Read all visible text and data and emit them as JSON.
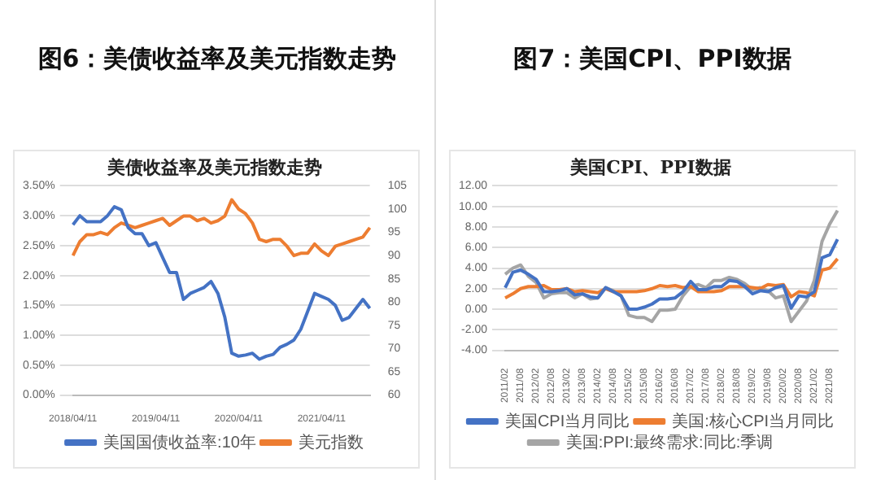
{
  "chart_data": [
    {
      "type": "line",
      "title": "图6：美债收益率及美元指数走势",
      "subtitle": "美债收益率及美元指数走势",
      "categories": [
        "2018/04/11",
        null,
        null,
        null,
        null,
        null,
        null,
        null,
        null,
        null,
        null,
        null,
        "2019/04/11",
        null,
        null,
        null,
        null,
        null,
        null,
        null,
        null,
        null,
        null,
        null,
        "2020/04/11",
        null,
        null,
        null,
        null,
        null,
        null,
        null,
        null,
        null,
        null,
        null,
        "2021/04/11",
        null,
        null,
        null,
        null,
        null,
        null,
        null
      ],
      "series": [
        {
          "name": "美国国债收益率:10年",
          "color": "#4472c4",
          "values": [
            2.85,
            3.0,
            2.9,
            2.9,
            2.9,
            3.0,
            3.15,
            3.1,
            2.8,
            2.7,
            2.7,
            2.5,
            2.55,
            2.3,
            2.05,
            2.05,
            1.6,
            1.7,
            1.75,
            1.8,
            1.9,
            1.7,
            1.3,
            0.7,
            0.65,
            0.67,
            0.7,
            0.6,
            0.65,
            0.68,
            0.8,
            0.85,
            0.92,
            1.1,
            1.4,
            1.7,
            1.65,
            1.6,
            1.5,
            1.25,
            1.3,
            1.45,
            1.6,
            1.45
          ]
        },
        {
          "name": "美元指数",
          "color": "#ed7d31",
          "axis": "y2",
          "values": [
            90,
            93,
            94.5,
            94.5,
            95,
            94.5,
            96,
            97,
            96.5,
            96,
            96.5,
            97,
            97.5,
            98,
            96.5,
            97.5,
            98.5,
            98.5,
            97.5,
            98,
            97,
            97.5,
            98.5,
            102,
            100,
            99,
            97,
            93.5,
            93,
            93.5,
            93.5,
            92,
            90,
            90.5,
            90.5,
            92.5,
            91,
            90,
            92,
            92.5,
            93,
            93.5,
            94,
            96
          ]
        }
      ],
      "ylim": [
        0,
        3.5
      ],
      "yticks": [
        {
          "value": 0,
          "label": "0.00%"
        },
        {
          "value": 0.5,
          "label": "0.50%"
        },
        {
          "value": 1,
          "label": "1.00%"
        },
        {
          "value": 1.5,
          "label": "1.50%"
        },
        {
          "value": 2,
          "label": "2.00%"
        },
        {
          "value": 2.5,
          "label": "2.50%"
        },
        {
          "value": 3,
          "label": "3.00%"
        },
        {
          "value": 3.5,
          "label": "3.50%"
        }
      ],
      "y2lim": [
        60,
        105
      ],
      "y2ticks": [
        60,
        65,
        70,
        75,
        80,
        85,
        90,
        95,
        100,
        105
      ],
      "grid": "y",
      "legend": "bottom",
      "marker": "none"
    },
    {
      "type": "line",
      "title": "图7：美国CPI、PPI数据",
      "subtitle": "美国CPI、PPI数据",
      "categories": [
        "2011/02",
        null,
        "2011/08",
        null,
        "2012/02",
        null,
        "2012/08",
        null,
        "2013/02",
        null,
        "2013/08",
        null,
        "2014/02",
        null,
        "2014/08",
        null,
        "2015/02",
        null,
        "2015/08",
        null,
        "2016/02",
        null,
        "2016/08",
        null,
        "2017/02",
        null,
        "2017/08",
        null,
        "2018/02",
        null,
        "2018/08",
        null,
        "2019/02",
        null,
        "2019/08",
        null,
        "2020/02",
        null,
        "2020/08",
        null,
        "2021/02",
        null,
        "2021/08",
        null
      ],
      "series": [
        {
          "name": "美国CPI当月同比",
          "color": "#4472c4",
          "values": [
            2.1,
            3.6,
            3.8,
            3.4,
            2.9,
            1.7,
            1.7,
            1.8,
            2.0,
            1.4,
            1.5,
            1.2,
            1.1,
            2.1,
            1.7,
            1.3,
            0.0,
            0.0,
            0.2,
            0.5,
            1.0,
            1.0,
            1.1,
            1.7,
            2.7,
            1.9,
            1.9,
            2.2,
            2.2,
            2.8,
            2.7,
            2.2,
            1.5,
            1.8,
            1.7,
            2.1,
            2.3,
            0.1,
            1.3,
            1.2,
            1.7,
            5.0,
            5.3,
            6.8
          ]
        },
        {
          "name": "美国:核心CPI当月同比",
          "color": "#ed7d31",
          "values": [
            1.1,
            1.5,
            2.0,
            2.2,
            2.2,
            2.3,
            1.9,
            1.9,
            2.0,
            1.7,
            1.8,
            1.7,
            1.6,
            2.0,
            1.7,
            1.7,
            1.7,
            1.7,
            1.8,
            2.0,
            2.3,
            2.2,
            2.3,
            2.1,
            2.2,
            1.7,
            1.7,
            1.7,
            1.8,
            2.2,
            2.2,
            2.2,
            2.1,
            2.0,
            2.4,
            2.3,
            2.4,
            1.2,
            1.7,
            1.6,
            1.3,
            3.8,
            4.0,
            4.9
          ]
        },
        {
          "name": "美国:PPI:最终需求:同比:季调",
          "color": "#a5a5a5",
          "values": [
            3.4,
            4.0,
            4.3,
            3.2,
            2.6,
            1.1,
            1.5,
            1.6,
            1.6,
            1.1,
            1.5,
            1.0,
            1.1,
            2.1,
            1.8,
            1.3,
            -0.6,
            -0.8,
            -0.8,
            -1.2,
            -0.1,
            -0.1,
            0.0,
            1.3,
            2.2,
            2.4,
            2.1,
            2.8,
            2.8,
            3.1,
            2.9,
            2.5,
            1.9,
            2.1,
            1.8,
            1.1,
            1.3,
            -1.2,
            -0.2,
            0.8,
            2.8,
            6.6,
            8.3,
            9.6
          ]
        }
      ],
      "ylim": [
        -4,
        12
      ],
      "yticks": [
        {
          "value": -4,
          "label": "-4.00"
        },
        {
          "value": -2,
          "label": "-2.00"
        },
        {
          "value": 0,
          "label": "0.00"
        },
        {
          "value": 2,
          "label": "2.00"
        },
        {
          "value": 4,
          "label": "4.00"
        },
        {
          "value": 6,
          "label": "6.00"
        },
        {
          "value": 8,
          "label": "8.00"
        },
        {
          "value": 10,
          "label": "10.00"
        },
        {
          "value": 12,
          "label": "12.00"
        }
      ],
      "grid": "y",
      "legend": "bottom",
      "marker": "none"
    }
  ]
}
